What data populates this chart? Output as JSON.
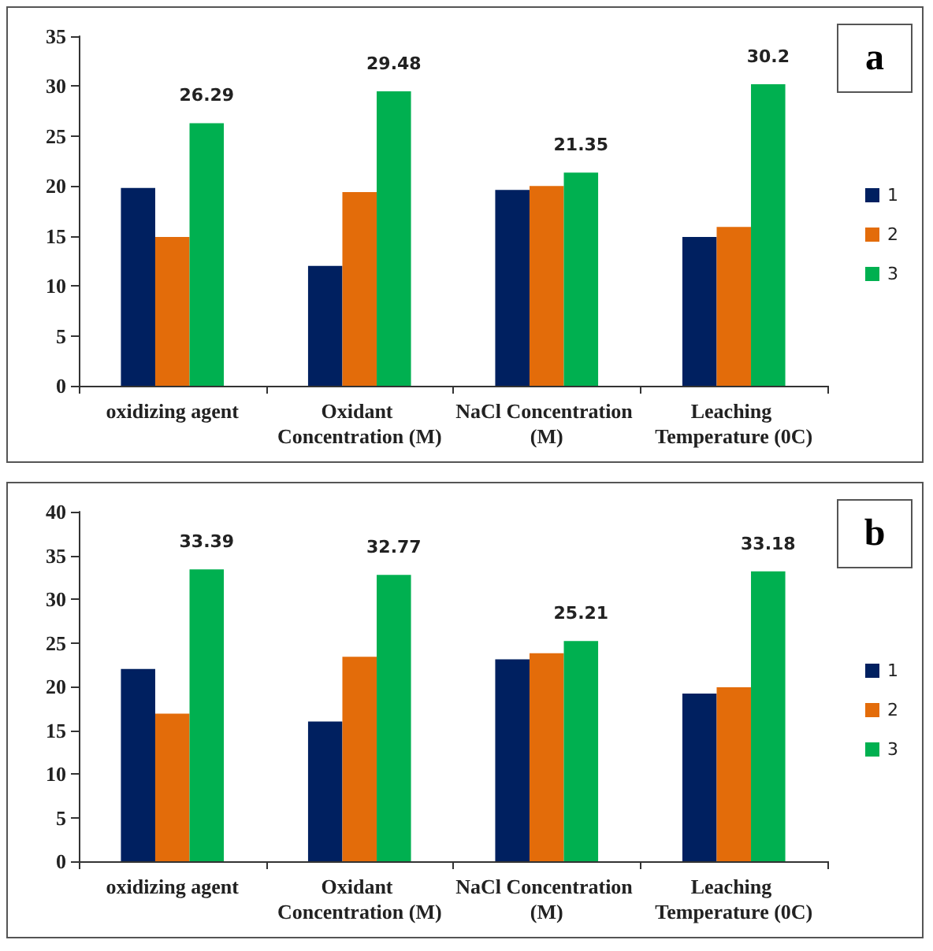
{
  "chart_data": [
    {
      "type": "bar",
      "annotations": [
        "a"
      ],
      "categories": [
        "oxidizing agent",
        "Oxidant Concentration (M)",
        "NaCl Concentration (M)",
        "Leaching Temperature (0C)"
      ],
      "series": [
        {
          "name": "1",
          "color": "#002060",
          "values": [
            19.8,
            12,
            19.6,
            14.9
          ]
        },
        {
          "name": "2",
          "color": "#e36c0a",
          "values": [
            14.9,
            19.4,
            20,
            15.9
          ]
        },
        {
          "name": "3",
          "color": "#00b050",
          "values": [
            26.29,
            29.48,
            21.35,
            30.2
          ],
          "value_labels": [
            "26.29",
            "29.48",
            "21.35",
            "30.2"
          ]
        }
      ],
      "ylim": [
        0,
        35
      ],
      "yticks": [
        0,
        5,
        10,
        15,
        20,
        25,
        30,
        35
      ],
      "grid": false,
      "legend": "right"
    },
    {
      "type": "bar",
      "annotations": [
        "b"
      ],
      "categories": [
        "oxidizing agent",
        "Oxidant Concentration (M)",
        "NaCl Concentration (M)",
        "Leaching Temperature (0C)"
      ],
      "series": [
        {
          "name": "1",
          "color": "#002060",
          "values": [
            22,
            16,
            23.1,
            19.2
          ]
        },
        {
          "name": "2",
          "color": "#e36c0a",
          "values": [
            16.9,
            23.4,
            23.8,
            19.9
          ]
        },
        {
          "name": "3",
          "color": "#00b050",
          "values": [
            33.39,
            32.77,
            25.21,
            33.18
          ],
          "value_labels": [
            "33.39",
            "32.77",
            "25.21",
            "33.18"
          ]
        }
      ],
      "ylim": [
        0,
        40
      ],
      "yticks": [
        0,
        5,
        10,
        15,
        20,
        25,
        30,
        35,
        40
      ],
      "grid": false,
      "legend": "right"
    }
  ]
}
